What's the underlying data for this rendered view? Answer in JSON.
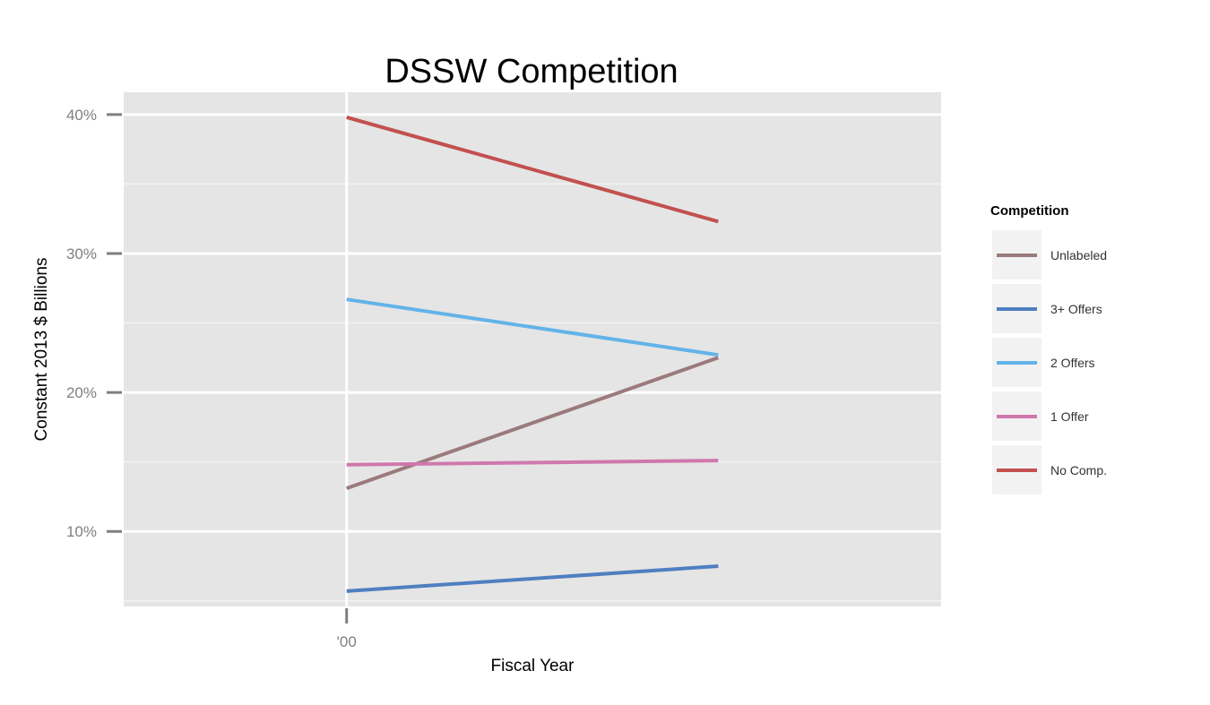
{
  "chart_data": {
    "type": "line",
    "title": "DSSW Competition",
    "xlabel": "Fiscal Year",
    "ylabel": "Constant 2013 $ Billions",
    "x": [
      2000,
      2001
    ],
    "x_tick_values": [
      2000
    ],
    "x_tick_labels": [
      "'00"
    ],
    "xlim": [
      1999.4,
      2001.6
    ],
    "ylim": [
      4.6,
      41.6
    ],
    "y_major_ticks": [
      10,
      20,
      30,
      40
    ],
    "y_tick_labels": [
      "10%",
      "20%",
      "30%",
      "40%"
    ],
    "y_minor_ticks": [
      5,
      15,
      25,
      35
    ],
    "grid": true,
    "legend_position": "right",
    "legend_title": "Competition",
    "series": [
      {
        "name": "Unlabeled",
        "color": "#9b7a7c",
        "values": [
          13.1,
          22.5
        ]
      },
      {
        "name": "3+ Offers",
        "color": "#4f7fc0",
        "values": [
          5.7,
          7.5
        ]
      },
      {
        "name": "2 Offers",
        "color": "#62b3e8",
        "values": [
          26.7,
          22.7
        ]
      },
      {
        "name": "1 Offer",
        "color": "#cf78ad",
        "values": [
          14.8,
          15.1
        ]
      },
      {
        "name": "No Comp.",
        "color": "#c2504f",
        "values": [
          39.8,
          32.3
        ]
      }
    ]
  }
}
